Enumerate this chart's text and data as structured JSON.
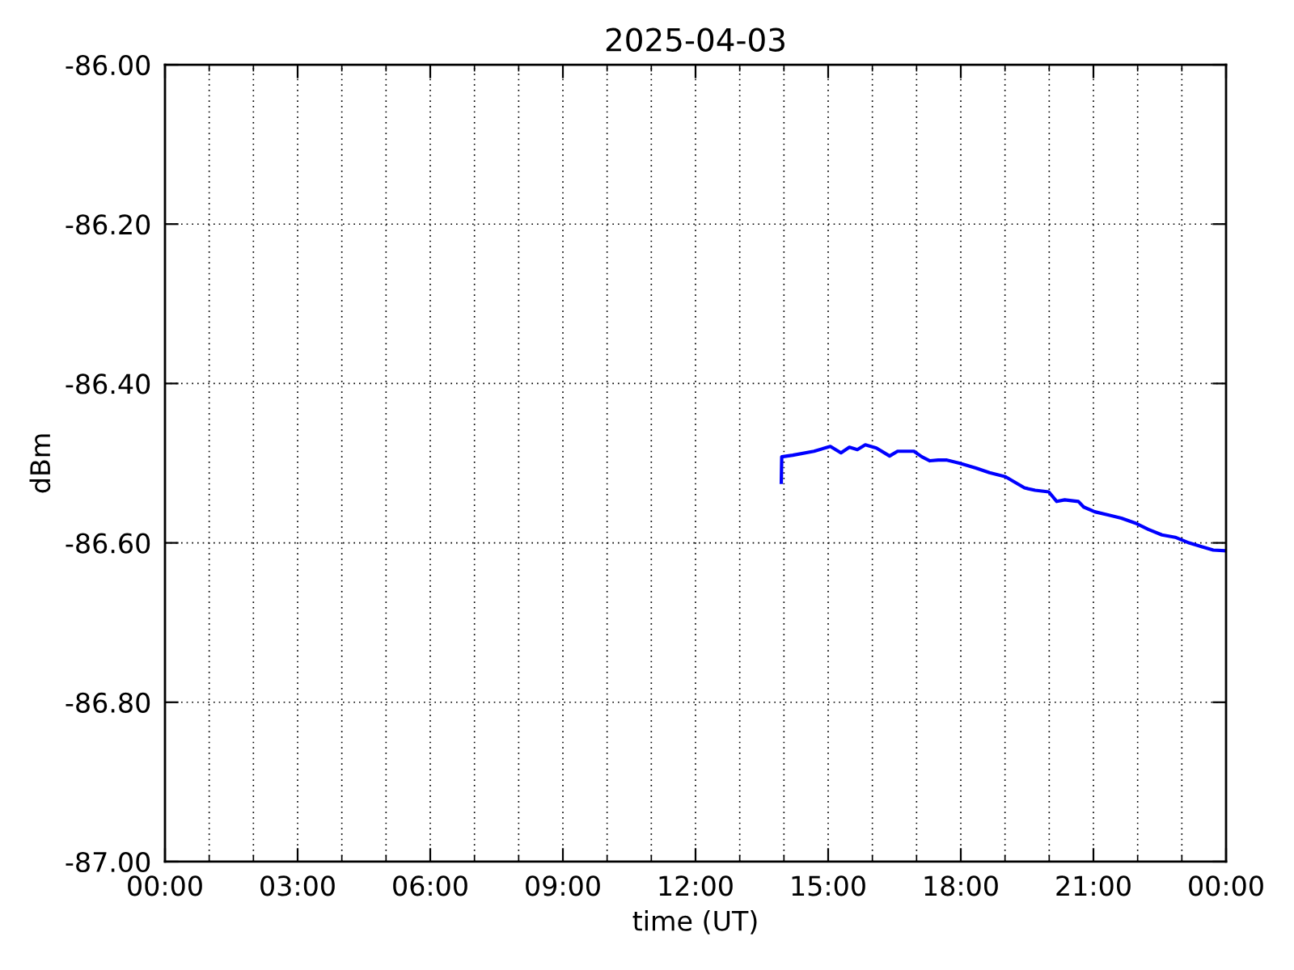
{
  "chart_data": {
    "type": "line",
    "title": "2025-04-03",
    "xlabel": "time (UT)",
    "ylabel": "dBm",
    "series": [
      {
        "color": "#0000ff",
        "x": [
          13.94,
          13.95,
          14.2,
          14.68,
          15.05,
          15.29,
          15.48,
          15.66,
          15.84,
          16.09,
          16.39,
          16.57,
          16.94,
          17.12,
          17.3,
          17.49,
          17.67,
          17.97,
          18.34,
          18.65,
          19.01,
          19.44,
          19.68,
          19.99,
          20.17,
          20.35,
          20.66,
          20.78,
          21.03,
          21.33,
          21.63,
          21.94,
          22.24,
          22.55,
          22.85,
          23.16,
          23.46,
          23.71,
          24.0
        ],
        "values": [
          -86.524,
          -86.492,
          -86.49,
          -86.485,
          -86.479,
          -86.487,
          -86.48,
          -86.483,
          -86.477,
          -86.481,
          -86.491,
          -86.485,
          -86.485,
          -86.492,
          -86.497,
          -86.496,
          -86.496,
          -86.5,
          -86.506,
          -86.512,
          -86.517,
          -86.531,
          -86.534,
          -86.536,
          -86.548,
          -86.546,
          -86.548,
          -86.555,
          -86.561,
          -86.565,
          -86.569,
          -86.575,
          -86.583,
          -86.59,
          -86.593,
          -86.6,
          -86.605,
          -86.609,
          -86.61
        ]
      }
    ],
    "xlim": [
      0,
      24
    ],
    "xticks": [
      {
        "value": 0,
        "label": "00:00"
      },
      {
        "value": 1,
        "label": null
      },
      {
        "value": 2,
        "label": null
      },
      {
        "value": 3,
        "label": "03:00"
      },
      {
        "value": 4,
        "label": null
      },
      {
        "value": 5,
        "label": null
      },
      {
        "value": 6,
        "label": "06:00"
      },
      {
        "value": 7,
        "label": null
      },
      {
        "value": 8,
        "label": null
      },
      {
        "value": 9,
        "label": "09:00"
      },
      {
        "value": 10,
        "label": null
      },
      {
        "value": 11,
        "label": null
      },
      {
        "value": 12,
        "label": "12:00"
      },
      {
        "value": 13,
        "label": null
      },
      {
        "value": 14,
        "label": null
      },
      {
        "value": 15,
        "label": "15:00"
      },
      {
        "value": 16,
        "label": null
      },
      {
        "value": 17,
        "label": null
      },
      {
        "value": 18,
        "label": "18:00"
      },
      {
        "value": 19,
        "label": null
      },
      {
        "value": 20,
        "label": null
      },
      {
        "value": 21,
        "label": "21:00"
      },
      {
        "value": 22,
        "label": null
      },
      {
        "value": 23,
        "label": null
      },
      {
        "value": 24,
        "label": "00:00"
      }
    ],
    "ylim": [
      -87.0,
      -86.0
    ],
    "yticks": [
      {
        "value": -87.0,
        "label": "-87.00"
      },
      {
        "value": -86.8,
        "label": "-86.80"
      },
      {
        "value": -86.6,
        "label": "-86.60"
      },
      {
        "value": -86.4,
        "label": "-86.40"
      },
      {
        "value": -86.2,
        "label": "-86.20"
      },
      {
        "value": -86.0,
        "label": "-86.00"
      }
    ],
    "grid": true,
    "marker": "none",
    "line_style": "solid"
  }
}
